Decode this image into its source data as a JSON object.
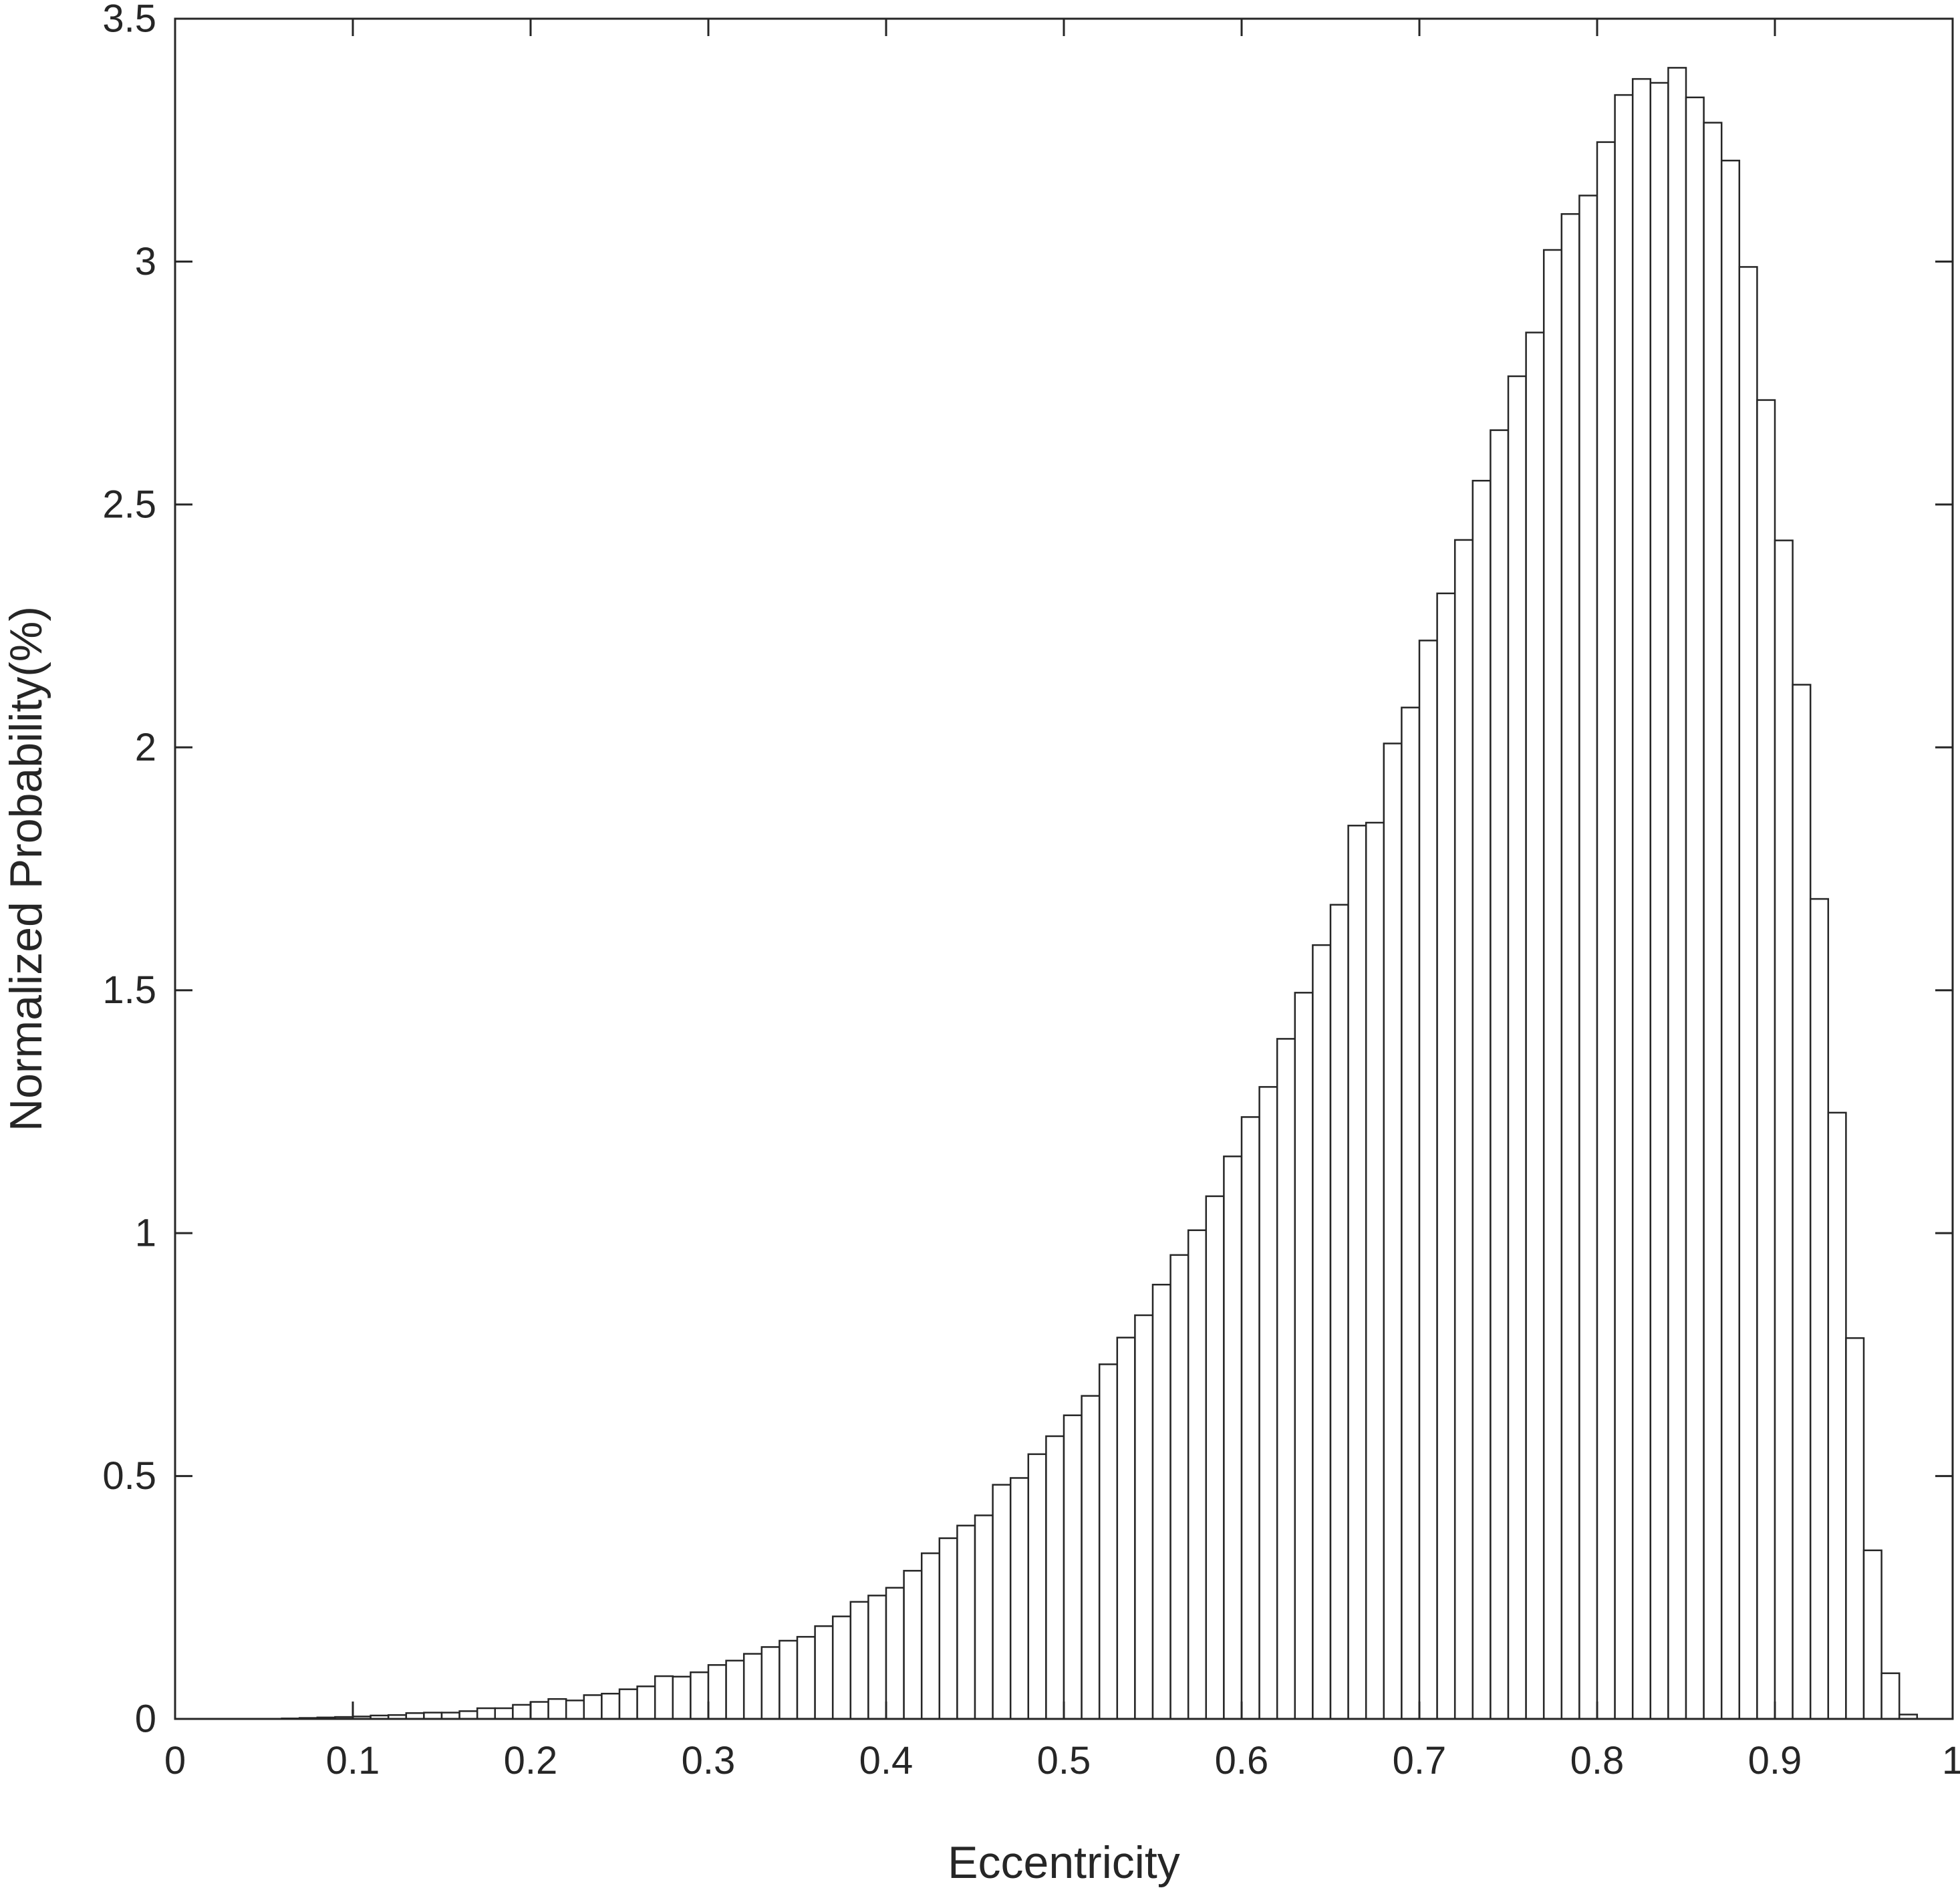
{
  "chart_data": {
    "type": "bar",
    "xlabel": "Eccentricity",
    "ylabel": "Normalized  Probability(%)",
    "xlim": [
      0,
      1
    ],
    "ylim": [
      0,
      3.5
    ],
    "x_ticks": [
      "0",
      "0.1",
      "0.2",
      "0.3",
      "0.4",
      "0.5",
      "0.6",
      "0.7",
      "0.8",
      "0.9",
      "1"
    ],
    "y_ticks": [
      "0",
      "0.5",
      "1",
      "1.5",
      "2",
      "2.5",
      "3",
      "3.5"
    ],
    "bin_width": 0.01,
    "bin_start": 0,
    "values": [
      0,
      0,
      0,
      0,
      0,
      0,
      0.001,
      0.002,
      0.003,
      0.004,
      0.005,
      0.007,
      0.008,
      0.012,
      0.013,
      0.013,
      0.016,
      0.022,
      0.022,
      0.029,
      0.035,
      0.041,
      0.038,
      0.049,
      0.052,
      0.061,
      0.067,
      0.088,
      0.087,
      0.096,
      0.111,
      0.12,
      0.134,
      0.148,
      0.161,
      0.169,
      0.191,
      0.211,
      0.241,
      0.254,
      0.27,
      0.305,
      0.341,
      0.372,
      0.398,
      0.419,
      0.482,
      0.496,
      0.545,
      0.582,
      0.625,
      0.665,
      0.73,
      0.785,
      0.831,
      0.894,
      0.955,
      1.006,
      1.076,
      1.158,
      1.239,
      1.301,
      1.4,
      1.495,
      1.593,
      1.676,
      1.839,
      1.845,
      2.008,
      2.082,
      2.22,
      2.317,
      2.427,
      2.549,
      2.653,
      2.764,
      2.854,
      3.024,
      3.098,
      3.136,
      3.246,
      3.343,
      3.376,
      3.368,
      3.399,
      3.338,
      3.286,
      3.208,
      2.989,
      2.715,
      2.426,
      2.129,
      1.688,
      1.248,
      0.784,
      0.347,
      0.094,
      0.009,
      0
    ]
  }
}
